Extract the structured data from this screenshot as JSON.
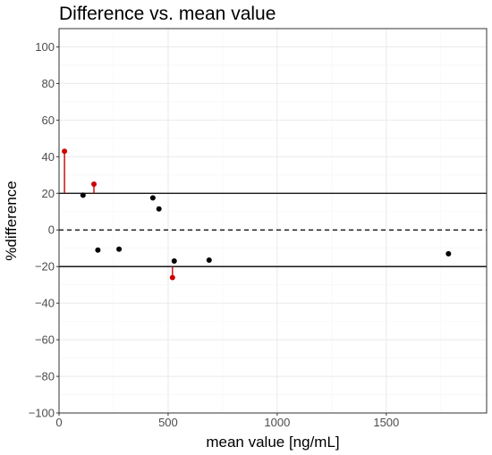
{
  "chart_data": {
    "type": "scatter",
    "title": "Difference vs. mean value",
    "xlabel": "mean value [ng/mL]",
    "ylabel": "%difference",
    "xlim": [
      0,
      1960
    ],
    "ylim": [
      -100,
      110
    ],
    "xticks": [
      0,
      500,
      1000,
      1500
    ],
    "yticks": [
      -100,
      -80,
      -60,
      -40,
      -20,
      0,
      20,
      40,
      60,
      80,
      100
    ],
    "xtick_labels": [
      "0",
      "500",
      "1000",
      "1500"
    ],
    "ytick_labels": [
      "−100",
      "−80",
      "−60",
      "−40",
      "−20",
      "0",
      "20",
      "40",
      "60",
      "80",
      "100"
    ],
    "grid": true,
    "reference_lines": [
      {
        "y": 20,
        "style": "solid"
      },
      {
        "y": 0,
        "style": "dashed"
      },
      {
        "y": -20,
        "style": "solid"
      }
    ],
    "points": [
      {
        "x": 25,
        "y": 43,
        "outside_limits": true
      },
      {
        "x": 110,
        "y": 19,
        "outside_limits": false
      },
      {
        "x": 160,
        "y": 25,
        "outside_limits": true
      },
      {
        "x": 178,
        "y": -11,
        "outside_limits": false
      },
      {
        "x": 275,
        "y": -10.5,
        "outside_limits": false
      },
      {
        "x": 430,
        "y": 17.5,
        "outside_limits": false
      },
      {
        "x": 458,
        "y": 11.5,
        "outside_limits": false
      },
      {
        "x": 520,
        "y": -26,
        "outside_limits": true
      },
      {
        "x": 528,
        "y": -17,
        "outside_limits": false
      },
      {
        "x": 688,
        "y": -16.5,
        "outside_limits": false
      },
      {
        "x": 1785,
        "y": -13,
        "outside_limits": false
      }
    ],
    "colors": {
      "normal_point": "#000000",
      "outside_point": "#cc0000",
      "grid_major": "#ebebeb",
      "grid_minor": "#f5f5f5",
      "panel_border": "#333333",
      "tick_label": "#4d4d4d"
    }
  }
}
